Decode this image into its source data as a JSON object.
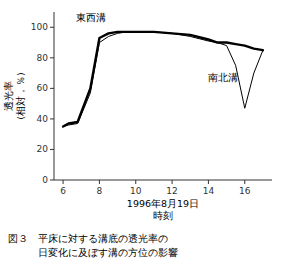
{
  "chart_data": {
    "type": "line",
    "x": [
      6.0,
      6.3,
      6.8,
      7.5,
      8.0,
      8.5,
      9.0,
      9.5,
      10.0,
      11.0,
      12.0,
      13.0,
      14.0,
      14.5,
      15.0,
      15.5,
      16.0,
      16.5,
      17.0
    ],
    "series": [
      {
        "color": "#000000",
        "values": [
          35,
          37,
          38,
          60,
          93,
          96,
          97,
          97,
          97,
          97,
          96,
          95,
          92,
          90,
          90,
          89,
          88,
          86,
          85
        ]
      },
      {
        "color": "#000000",
        "values": [
          35,
          36,
          37,
          57,
          90,
          94,
          96,
          97,
          97,
          97,
          96,
          94,
          91,
          90,
          88,
          75,
          47,
          70,
          85
        ]
      }
    ],
    "xlabel": [
      "1996年8月19日",
      "時刻"
    ],
    "ylabel": [
      "透光率",
      "(相対，％)"
    ],
    "annotations": [
      {
        "text": "東西溝",
        "x": 6.7,
        "y": 104
      },
      {
        "text": "南北溝",
        "x": 14.0,
        "y": 65
      }
    ],
    "caption": [
      "図３　平床に対する溝底の透光率の",
      "　　　日変化に及ぼす溝の方位の影響"
    ],
    "xlim": [
      5.5,
      17.5
    ],
    "ylim": [
      0,
      110
    ],
    "xticks": [
      6,
      8,
      10,
      12,
      14,
      16
    ],
    "yticks": [
      0,
      20,
      40,
      60,
      80,
      100
    ],
    "grid": false
  }
}
